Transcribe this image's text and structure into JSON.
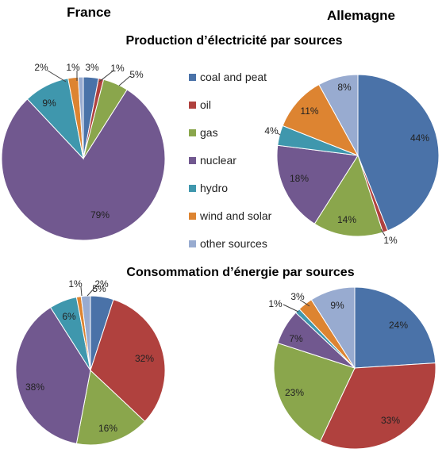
{
  "headers": {
    "left": "France",
    "right": "Allemagne"
  },
  "titles": {
    "production": "Production d’électricité  par sources",
    "consumption": "Consommation d’énergie par sources"
  },
  "legend": [
    {
      "label": "coal and peat",
      "color": "#4a72a8"
    },
    {
      "label": "oil",
      "color": "#b0413e"
    },
    {
      "label": "gas",
      "color": "#8aa64c"
    },
    {
      "label": "nuclear",
      "color": "#71588f"
    },
    {
      "label": "hydro",
      "color": "#3f97ad"
    },
    {
      "label": "wind and solar",
      "color": "#dd8431"
    },
    {
      "label": "other sources",
      "color": "#98abd0"
    }
  ],
  "chart_data": [
    {
      "type": "pie",
      "country": "France",
      "section": "Production d’électricité  par sources",
      "categories": [
        "coal and peat",
        "oil",
        "gas",
        "nuclear",
        "hydro",
        "wind and solar",
        "other sources"
      ],
      "values": [
        3,
        1,
        5,
        79,
        9,
        2,
        1
      ],
      "labels": [
        "3%",
        "1%",
        "5%",
        "79%",
        "9%",
        "2%",
        "1%"
      ]
    },
    {
      "type": "pie",
      "country": "Allemagne",
      "section": "Production d’électricité  par sources",
      "categories": [
        "coal and peat",
        "oil",
        "gas",
        "nuclear",
        "hydro",
        "wind and solar",
        "other sources"
      ],
      "values": [
        44,
        1,
        14,
        18,
        4,
        11,
        8
      ],
      "labels": [
        "44%",
        "1%",
        "14%",
        "18%",
        "4%",
        "11%",
        "8%"
      ]
    },
    {
      "type": "pie",
      "country": "France",
      "section": "Consommation d’énergie par sources",
      "categories": [
        "coal and peat",
        "oil",
        "gas",
        "nuclear",
        "hydro",
        "wind and solar",
        "other sources"
      ],
      "values": [
        5,
        32,
        16,
        38,
        6,
        1,
        2
      ],
      "labels": [
        "5%",
        "32%",
        "16%",
        "38%",
        "6%",
        "1%",
        "2%"
      ]
    },
    {
      "type": "pie",
      "country": "Allemagne",
      "section": "Consommation d’énergie par sources",
      "categories": [
        "coal and peat",
        "oil",
        "gas",
        "nuclear",
        "hydro",
        "wind and solar",
        "other sources"
      ],
      "values": [
        24,
        33,
        23,
        7,
        1,
        3,
        9
      ],
      "labels": [
        "24%",
        "33%",
        "23%",
        "7%",
        "1%",
        "3%",
        "9%"
      ]
    }
  ]
}
